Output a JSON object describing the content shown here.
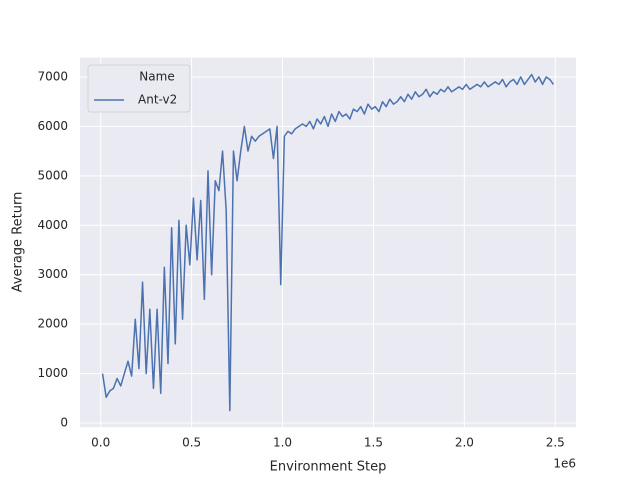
{
  "chart_data": {
    "type": "line",
    "xlabel": "Environment Step",
    "ylabel": "Average Return",
    "x_offset_label": "1e6",
    "x": [
      10000,
      30000,
      50000,
      70000,
      90000,
      110000,
      130000,
      150000,
      170000,
      190000,
      210000,
      230000,
      250000,
      270000,
      290000,
      310000,
      330000,
      350000,
      370000,
      390000,
      410000,
      430000,
      450000,
      470000,
      490000,
      510000,
      530000,
      550000,
      570000,
      590000,
      610000,
      630000,
      650000,
      670000,
      690000,
      710000,
      730000,
      750000,
      770000,
      790000,
      810000,
      830000,
      850000,
      870000,
      890000,
      910000,
      930000,
      950000,
      970000,
      990000,
      1010000,
      1030000,
      1050000,
      1070000,
      1090000,
      1110000,
      1130000,
      1150000,
      1170000,
      1190000,
      1210000,
      1230000,
      1250000,
      1270000,
      1290000,
      1310000,
      1330000,
      1350000,
      1370000,
      1390000,
      1410000,
      1430000,
      1450000,
      1470000,
      1490000,
      1510000,
      1530000,
      1550000,
      1570000,
      1590000,
      1610000,
      1630000,
      1650000,
      1670000,
      1690000,
      1710000,
      1730000,
      1750000,
      1770000,
      1790000,
      1810000,
      1830000,
      1850000,
      1870000,
      1890000,
      1910000,
      1930000,
      1950000,
      1970000,
      1990000,
      2010000,
      2030000,
      2050000,
      2070000,
      2090000,
      2110000,
      2130000,
      2150000,
      2170000,
      2190000,
      2210000,
      2230000,
      2250000,
      2270000,
      2290000,
      2310000,
      2330000,
      2350000,
      2370000,
      2390000,
      2410000,
      2430000,
      2450000,
      2470000,
      2490000
    ],
    "series": [
      {
        "name": "Ant-v2",
        "color": "#4c72b0",
        "values": [
          1000,
          520,
          650,
          700,
          900,
          750,
          1000,
          1250,
          950,
          2100,
          1100,
          2850,
          1000,
          2300,
          700,
          2300,
          600,
          3150,
          1200,
          3950,
          1600,
          4100,
          2100,
          4000,
          3200,
          4550,
          3300,
          4500,
          2500,
          5100,
          3000,
          4900,
          4700,
          5500,
          4300,
          250,
          5500,
          4900,
          5500,
          6000,
          5500,
          5800,
          5700,
          5800,
          5850,
          5900,
          5950,
          5350,
          6000,
          2800,
          5800,
          5900,
          5850,
          5950,
          6000,
          6050,
          6000,
          6100,
          5950,
          6150,
          6050,
          6200,
          6000,
          6250,
          6100,
          6300,
          6200,
          6250,
          6150,
          6350,
          6300,
          6400,
          6250,
          6450,
          6350,
          6400,
          6300,
          6500,
          6400,
          6550,
          6450,
          6500,
          6600,
          6500,
          6650,
          6550,
          6700,
          6600,
          6650,
          6750,
          6600,
          6700,
          6650,
          6750,
          6700,
          6800,
          6700,
          6750,
          6800,
          6750,
          6850,
          6750,
          6800,
          6850,
          6800,
          6900,
          6800,
          6850,
          6900,
          6850,
          6950,
          6800,
          6900,
          6950,
          6850,
          7000,
          6850,
          6950,
          7050,
          6900,
          7000,
          6850,
          7000,
          6950,
          6850
        ]
      }
    ],
    "legend_title": "Name",
    "legend": "upper left",
    "xlim": [
      -114000,
      2614000
    ],
    "xticks": [
      {
        "value": 0,
        "label": "0.0"
      },
      {
        "value": 500000,
        "label": "0.5"
      },
      {
        "value": 1000000,
        "label": "1.0"
      },
      {
        "value": 1500000,
        "label": "1.5"
      },
      {
        "value": 2000000,
        "label": "2.0"
      },
      {
        "value": 2500000,
        "label": "2.5"
      }
    ],
    "ylim": [
      -85,
      7392
    ],
    "yticks": [
      0,
      1000,
      2000,
      3000,
      4000,
      5000,
      6000,
      7000
    ],
    "grid": true
  }
}
